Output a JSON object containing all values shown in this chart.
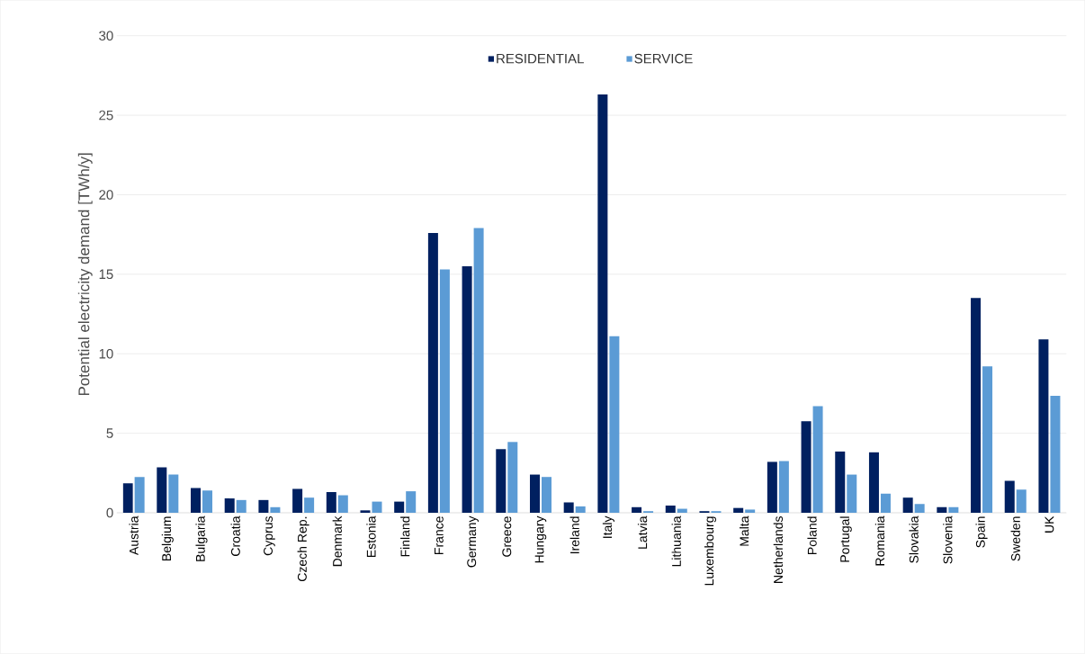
{
  "chart_data": {
    "type": "bar",
    "ylabel": "Potential electricity demand [TWh/y]",
    "categories": [
      "Austria",
      "Belgium",
      "Bulgaria",
      "Croatia",
      "Cyprus",
      "Czech Rep.",
      "Denmark",
      "Estonia",
      "Finland",
      "France",
      "Germany",
      "Greece",
      "Hungary",
      "Ireland",
      "Italy",
      "Latvia",
      "Lithuania",
      "Luxembourg",
      "Malta",
      "Netherlands",
      "Poland",
      "Portugal",
      "Romania",
      "Slovakia",
      "Slovenia",
      "Spain",
      "Sweden",
      "UK"
    ],
    "series": [
      {
        "name": "RESIDENTIAL",
        "color": "#002060",
        "values": [
          1.85,
          2.85,
          1.55,
          0.9,
          0.8,
          1.5,
          1.3,
          0.15,
          0.7,
          17.6,
          15.5,
          4.0,
          2.4,
          0.65,
          26.3,
          0.35,
          0.45,
          0.1,
          0.3,
          3.2,
          5.75,
          3.85,
          3.8,
          0.95,
          0.35,
          13.5,
          2.0,
          10.9
        ]
      },
      {
        "name": "SERVICE",
        "color": "#5b9bd5",
        "values": [
          2.25,
          2.4,
          1.4,
          0.8,
          0.35,
          0.95,
          1.1,
          0.7,
          1.35,
          15.3,
          17.9,
          4.45,
          2.25,
          0.4,
          11.1,
          0.1,
          0.25,
          0.1,
          0.2,
          3.25,
          6.7,
          2.4,
          1.2,
          0.55,
          0.35,
          9.2,
          1.45,
          7.35
        ]
      }
    ],
    "ylim": [
      0,
      30
    ],
    "yticks": [
      0,
      5,
      10,
      15,
      20,
      25,
      30
    ],
    "grid": "y",
    "legend": "top"
  }
}
